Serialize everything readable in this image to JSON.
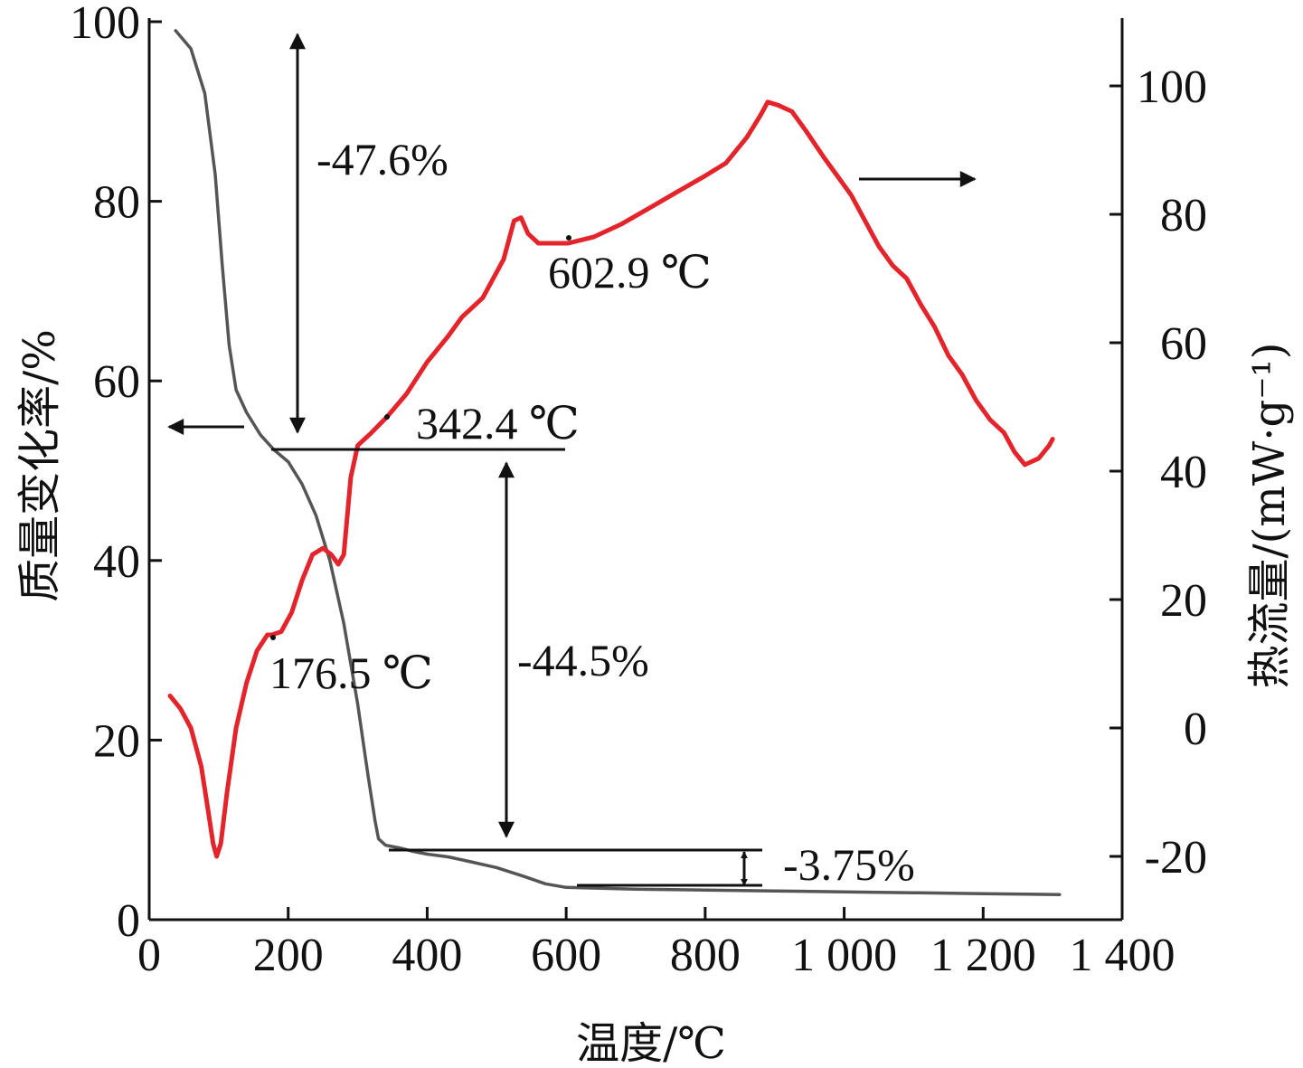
{
  "chart_data": {
    "type": "line",
    "xlabel": "温度/℃",
    "ylabel_left": "质量变化率/%",
    "ylabel_right": "热流量/(mW·g⁻¹)",
    "xlim": [
      0,
      1400
    ],
    "ylim_left": [
      0,
      100
    ],
    "ylim_right": [
      -30,
      110
    ],
    "x_ticks": [
      {
        "value": 0,
        "label": "0"
      },
      {
        "value": 200,
        "label": "200"
      },
      {
        "value": 400,
        "label": "400"
      },
      {
        "value": 600,
        "label": "600"
      },
      {
        "value": 800,
        "label": "800"
      },
      {
        "value": 1000,
        "label": "1 000"
      },
      {
        "value": 1200,
        "label": "1 200"
      },
      {
        "value": 1400,
        "label": "1 400"
      }
    ],
    "y_left_ticks": [
      {
        "value": 0,
        "label": "0"
      },
      {
        "value": 20,
        "label": "20"
      },
      {
        "value": 40,
        "label": "40"
      },
      {
        "value": 60,
        "label": "60"
      },
      {
        "value": 80,
        "label": "80"
      },
      {
        "value": 100,
        "label": "100"
      }
    ],
    "y_right_ticks": [
      {
        "value": -20,
        "label": "-20"
      },
      {
        "value": 0,
        "label": "0"
      },
      {
        "value": 20,
        "label": "20"
      },
      {
        "value": 40,
        "label": "40"
      },
      {
        "value": 60,
        "label": "60"
      },
      {
        "value": 80,
        "label": "80"
      },
      {
        "value": 100,
        "label": "100"
      }
    ],
    "series": [
      {
        "axis": "left",
        "color": "#555555",
        "points": [
          [
            38,
            99
          ],
          [
            60,
            97
          ],
          [
            80,
            92
          ],
          [
            95,
            83
          ],
          [
            105,
            73
          ],
          [
            115,
            64
          ],
          [
            125,
            59
          ],
          [
            140,
            56.5
          ],
          [
            160,
            54
          ],
          [
            180,
            52.3
          ],
          [
            200,
            51
          ],
          [
            220,
            48.5
          ],
          [
            240,
            45
          ],
          [
            260,
            40
          ],
          [
            280,
            33
          ],
          [
            300,
            24
          ],
          [
            315,
            16
          ],
          [
            325,
            11
          ],
          [
            330,
            9
          ],
          [
            340,
            8.3
          ],
          [
            360,
            8
          ],
          [
            380,
            7.6
          ],
          [
            400,
            7.3
          ],
          [
            430,
            7
          ],
          [
            460,
            6.5
          ],
          [
            500,
            5.8
          ],
          [
            540,
            4.8
          ],
          [
            570,
            4
          ],
          [
            600,
            3.6
          ],
          [
            650,
            3.5
          ],
          [
            700,
            3.4
          ],
          [
            800,
            3.3
          ],
          [
            900,
            3.2
          ],
          [
            1000,
            3.1
          ],
          [
            1100,
            3
          ],
          [
            1200,
            2.9
          ],
          [
            1310,
            2.8
          ]
        ]
      },
      {
        "axis": "right",
        "color": "#e3242b",
        "points": [
          [
            30,
            5
          ],
          [
            45,
            3
          ],
          [
            60,
            0
          ],
          [
            75,
            -6
          ],
          [
            85,
            -13
          ],
          [
            92,
            -18
          ],
          [
            97,
            -20
          ],
          [
            103,
            -18
          ],
          [
            112,
            -10
          ],
          [
            125,
            0
          ],
          [
            140,
            7
          ],
          [
            155,
            12
          ],
          [
            170,
            14.5
          ],
          [
            176.5,
            14.5
          ],
          [
            190,
            15
          ],
          [
            205,
            18
          ],
          [
            220,
            23
          ],
          [
            235,
            27
          ],
          [
            250,
            28
          ],
          [
            262,
            27
          ],
          [
            272,
            25.5
          ],
          [
            280,
            27
          ],
          [
            290,
            39
          ],
          [
            300,
            44
          ],
          [
            320,
            46
          ],
          [
            342.4,
            48.5
          ],
          [
            370,
            52
          ],
          [
            400,
            57
          ],
          [
            430,
            61
          ],
          [
            450,
            64
          ],
          [
            480,
            67
          ],
          [
            510,
            73
          ],
          [
            525,
            79
          ],
          [
            535,
            79.5
          ],
          [
            545,
            77
          ],
          [
            560,
            75.5
          ],
          [
            580,
            75.5
          ],
          [
            602.9,
            75.5
          ],
          [
            640,
            76.5
          ],
          [
            680,
            78.5
          ],
          [
            720,
            81
          ],
          [
            760,
            83.5
          ],
          [
            800,
            86
          ],
          [
            830,
            88
          ],
          [
            860,
            92
          ],
          [
            880,
            95.5
          ],
          [
            890,
            97.5
          ],
          [
            905,
            97
          ],
          [
            925,
            96
          ],
          [
            945,
            93
          ],
          [
            970,
            89
          ],
          [
            990,
            86
          ],
          [
            1010,
            83
          ],
          [
            1030,
            79
          ],
          [
            1050,
            75
          ],
          [
            1070,
            72
          ],
          [
            1090,
            70
          ],
          [
            1110,
            66
          ],
          [
            1130,
            62.5
          ],
          [
            1150,
            58
          ],
          [
            1170,
            55
          ],
          [
            1190,
            51
          ],
          [
            1210,
            48
          ],
          [
            1230,
            46
          ],
          [
            1245,
            43
          ],
          [
            1260,
            41
          ],
          [
            1280,
            42
          ],
          [
            1295,
            44
          ],
          [
            1300,
            45
          ]
        ]
      }
    ],
    "annotations": {
      "mass_loss_1": "-47.6%",
      "mass_loss_2": "-44.5%",
      "mass_loss_3": "-3.75%",
      "temp_1": "176.5 ℃",
      "temp_2": "342.4 ℃",
      "temp_3": "602.9 ℃"
    }
  }
}
